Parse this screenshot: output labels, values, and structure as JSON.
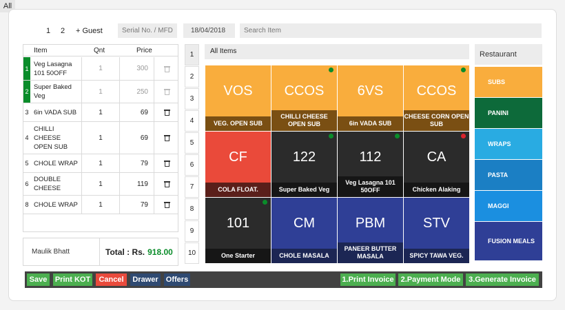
{
  "guest_tabs": [
    "All",
    "1",
    "2",
    "+ Guest"
  ],
  "serial_field": "Serial No. / MFD",
  "date_field": "18/04/2018",
  "search": {
    "placeholder": "Search Item"
  },
  "order_table": {
    "headers": {
      "item": "Item",
      "qnt": "Qnt",
      "price": "Price"
    },
    "rows": [
      {
        "num": "1",
        "item": "Veg Lasagna 101 50OFF",
        "qnt": "1",
        "price": "300",
        "status": "sent"
      },
      {
        "num": "2",
        "item": "Super Baked Veg",
        "qnt": "1",
        "price": "250",
        "status": "sent"
      },
      {
        "num": "3",
        "item": "6in VADA SUB",
        "qnt": "1",
        "price": "69",
        "status": "new"
      },
      {
        "num": "4",
        "item": "CHILLI CHEESE OPEN SUB",
        "qnt": "1",
        "price": "69",
        "status": "new"
      },
      {
        "num": "5",
        "item": "CHOLE WRAP",
        "qnt": "1",
        "price": "79",
        "status": "new"
      },
      {
        "num": "6",
        "item": "DOUBLE CHEESE",
        "qnt": "1",
        "price": "119",
        "status": "new"
      },
      {
        "num": "8",
        "item": "CHOLE WRAP",
        "qnt": "1",
        "price": "79",
        "status": "new"
      }
    ]
  },
  "footer": {
    "name": "Maulik Bhatt",
    "total_label": "Total : Rs.",
    "total_value": "918.00"
  },
  "category_numbers": [
    "1",
    "2",
    "3",
    "4",
    "5",
    "6",
    "7",
    "8",
    "9",
    "10"
  ],
  "items_header": "All Items",
  "tiles": [
    {
      "code": "VOS",
      "label": "VEG. OPEN SUB",
      "color": "#f9ad3d",
      "label_bg": "#7a4f13",
      "dot": ""
    },
    {
      "code": "CCOS",
      "label": "CHILLI CHEESE OPEN SUB",
      "color": "#f9ad3d",
      "label_bg": "#7a4f13",
      "dot": "#0a8c2a"
    },
    {
      "code": "6VS",
      "label": "6in VADA SUB",
      "color": "#f9ad3d",
      "label_bg": "#7a4f13",
      "dot": ""
    },
    {
      "code": "CCOS",
      "label": "CHEESE CORN OPEN SUB",
      "color": "#f9ad3d",
      "label_bg": "#7a4f13",
      "dot": "#0a8c2a"
    },
    {
      "code": "CF",
      "label": "COLA FLOAT.",
      "color": "#ea4a3a",
      "label_bg": "#5a1f1a",
      "dot": ""
    },
    {
      "code": "122",
      "label": "Super Baked Veg",
      "color": "#2b2b2b",
      "label_bg": "#161616",
      "dot": "#0a8c2a"
    },
    {
      "code": "112",
      "label": "Veg Lasagna 101 50OFF",
      "color": "#2b2b2b",
      "label_bg": "#161616",
      "dot": "#0a8c2a"
    },
    {
      "code": "CA",
      "label": "Chicken Alaking",
      "color": "#2b2b2b",
      "label_bg": "#161616",
      "dot": "#d9242c"
    },
    {
      "code": "101",
      "label": "One Starter",
      "color": "#2b2b2b",
      "label_bg": "#161616",
      "dot": "#0a8c2a"
    },
    {
      "code": "CM",
      "label": "CHOLE MASALA",
      "color": "#2f3f96",
      "label_bg": "#1c2654",
      "dot": ""
    },
    {
      "code": "PBM",
      "label": "PANEER BUTTER MASALA",
      "color": "#2f3f96",
      "label_bg": "#1c2654",
      "dot": ""
    },
    {
      "code": "STV",
      "label": "SPICY TAWA VEG.",
      "color": "#2f3f96",
      "label_bg": "#1c2654",
      "dot": ""
    }
  ],
  "restaurant_label": "Restaurant",
  "categories": [
    {
      "label": "SUBS",
      "color": "#f9ad3d"
    },
    {
      "label": "PANINI",
      "color": "#0d6a3a"
    },
    {
      "label": "WRAPS",
      "color": "#29abe2"
    },
    {
      "label": "PASTA",
      "color": "#1b7fc4"
    },
    {
      "label": "MAGGI",
      "color": "#1b8fe0"
    },
    {
      "label": "FUSION MEALS",
      "color": "#2f3f96"
    }
  ],
  "actions": {
    "save": "Save",
    "print_kot": "Print KOT",
    "cancel": "Cancel",
    "drawer": "Drawer",
    "offers": "Offers",
    "print_invoice": "1.Print Invoice",
    "payment_mode": "2.Payment Mode",
    "generate_invoice": "3.Generate Invoice"
  }
}
